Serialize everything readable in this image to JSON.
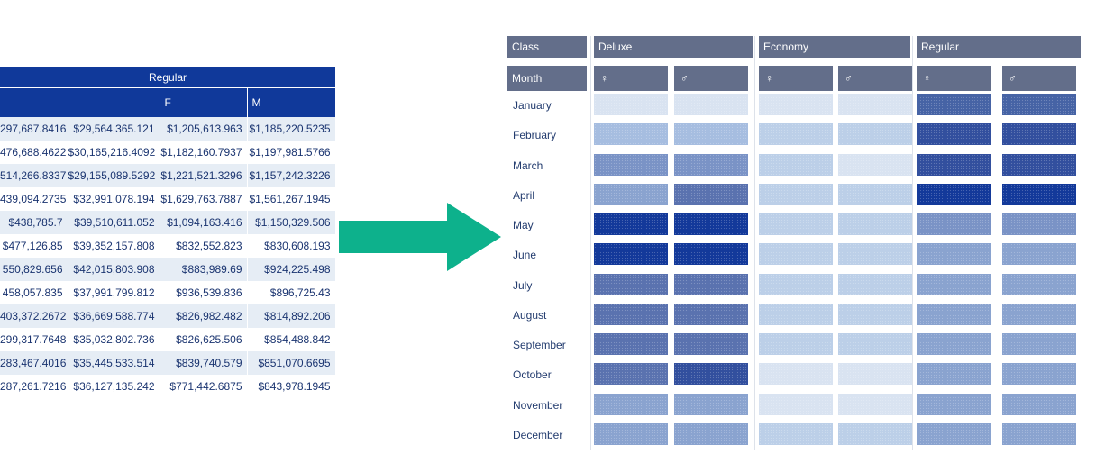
{
  "left_table": {
    "group_header": "Regular",
    "columns": [
      "",
      "",
      "F",
      "M"
    ],
    "rows": [
      [
        "297,687.8416",
        "$29,564,365.121",
        "$1,205,613.963",
        "$1,185,220.5235"
      ],
      [
        "476,688.4622",
        "$30,165,216.4092",
        "$1,182,160.7937",
        "$1,197,981.5766"
      ],
      [
        "514,266.8337",
        "$29,155,089.5292",
        "$1,221,521.3296",
        "$1,157,242.3226"
      ],
      [
        "439,094.2735",
        "$32,991,078.194",
        "$1,629,763.7887",
        "$1,561,267.1945"
      ],
      [
        "$438,785.7",
        "$39,510,611.052",
        "$1,094,163.416",
        "$1,150,329.506"
      ],
      [
        "$477,126.85",
        "$39,352,157.808",
        "$832,552.823",
        "$830,608.193"
      ],
      [
        "550,829.656",
        "$42,015,803.908",
        "$883,989.69",
        "$924,225.498"
      ],
      [
        "458,057.835",
        "$37,991,799.812",
        "$936,539.836",
        "$896,725.43"
      ],
      [
        "403,372.2672",
        "$36,669,588.774",
        "$826,982.482",
        "$814,892.206"
      ],
      [
        "299,317.7648",
        "$35,032,802.736",
        "$826,625.506",
        "$854,488.842"
      ],
      [
        "283,467.4016",
        "$35,445,533.514",
        "$839,740.579",
        "$851,070.6695"
      ],
      [
        "287,261.7216",
        "$36,127,135.242",
        "$771,442.6875",
        "$843,978.1945"
      ]
    ]
  },
  "arrow": {
    "color": "#0db18c",
    "icon": "right-arrow-icon"
  },
  "heatmap": {
    "class_label": "Class",
    "month_label": "Month",
    "classes": [
      "Deluxe",
      "Economy",
      "Regular"
    ],
    "sex_symbols": [
      "♀",
      "♂",
      "♀",
      "♂",
      "♀",
      "♂"
    ],
    "months": [
      "January",
      "February",
      "March",
      "April",
      "May",
      "June",
      "July",
      "August",
      "September",
      "October",
      "November",
      "December"
    ],
    "palette": {
      "0": "#d9e3f1",
      "1": "#bccfe8",
      "2": "#a6bde0",
      "3": "#8aa3cf",
      "4": "#7a93c6",
      "5": "#5a72af",
      "6": "#324f9e",
      "7": "#13399a",
      "8": "#4663a5"
    },
    "intensity": [
      [
        0,
        0,
        0,
        0,
        8,
        8
      ],
      [
        2,
        2,
        1,
        1,
        6,
        6
      ],
      [
        4,
        4,
        1,
        0,
        6,
        6
      ],
      [
        3,
        5,
        1,
        1,
        7,
        7
      ],
      [
        7,
        7,
        1,
        1,
        4,
        4
      ],
      [
        7,
        7,
        1,
        1,
        3,
        3
      ],
      [
        5,
        5,
        1,
        1,
        3,
        3
      ],
      [
        5,
        5,
        1,
        1,
        3,
        3
      ],
      [
        5,
        5,
        1,
        1,
        3,
        3
      ],
      [
        5,
        6,
        0,
        0,
        3,
        3
      ],
      [
        3,
        3,
        0,
        0,
        3,
        3
      ],
      [
        3,
        3,
        1,
        1,
        3,
        3
      ]
    ]
  }
}
